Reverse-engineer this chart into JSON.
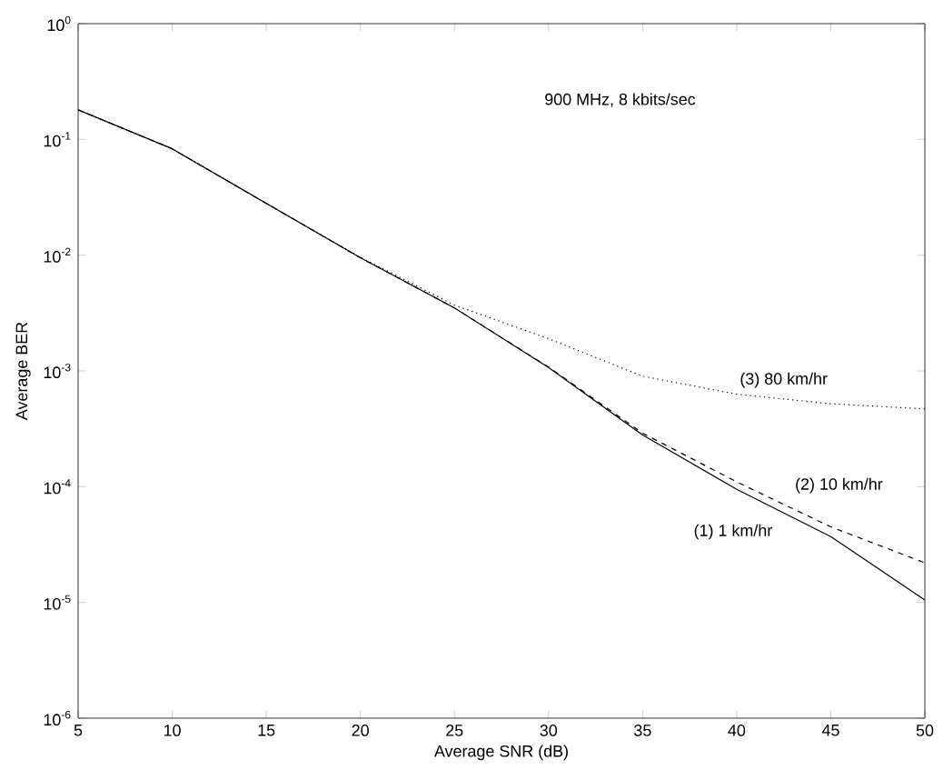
{
  "chart_data": {
    "type": "line",
    "xlabel": "Average SNR (dB)",
    "ylabel": "Average BER",
    "log": "y",
    "x": [
      5,
      10,
      15,
      20,
      25,
      30,
      35,
      40,
      45,
      50
    ],
    "series": [
      {
        "name": "(1) 1 km/hr",
        "color": "#000000",
        "line_style": "solid",
        "values": [
          0.18,
          0.083,
          0.028,
          0.0095,
          0.0035,
          0.00107,
          0.00028,
          9.5e-05,
          3.7e-05,
          1.05e-05
        ]
      },
      {
        "name": "(2) 10 km/hr",
        "color": "#000000",
        "line_style": "dashed",
        "values": [
          0.18,
          0.083,
          0.028,
          0.0095,
          0.0035,
          0.00108,
          0.00029,
          0.00011,
          4.5e-05,
          2.2e-05
        ]
      },
      {
        "name": "(3) 80 km/hr",
        "color": "#000000",
        "line_style": "dotted",
        "values": [
          0.18,
          0.083,
          0.028,
          0.0096,
          0.0037,
          0.0019,
          0.0009,
          0.00063,
          0.00052,
          0.00047
        ]
      }
    ],
    "xlim": [
      5,
      50
    ],
    "xticks": [
      5,
      10,
      15,
      20,
      25,
      30,
      35,
      40,
      45,
      50
    ],
    "ylim": [
      1e-06,
      1
    ],
    "yticks": [
      {
        "value": 1e-06,
        "label": "10$^{-6}$"
      },
      {
        "value": 1e-05,
        "label": "10$^{-5}$"
      },
      {
        "value": 0.0001,
        "label": "10$^{-4}$"
      },
      {
        "value": 0.001,
        "label": "10$^{-3}$"
      },
      {
        "value": 0.01,
        "label": "10$^{-2}$"
      },
      {
        "value": 0.1,
        "label": "10$^{-1}$"
      },
      {
        "value": 1,
        "label": "10$^{0}$"
      }
    ],
    "grid": false,
    "marker": "none",
    "annotations": [
      "900 MHz, 8 kbits/sec"
    ]
  }
}
